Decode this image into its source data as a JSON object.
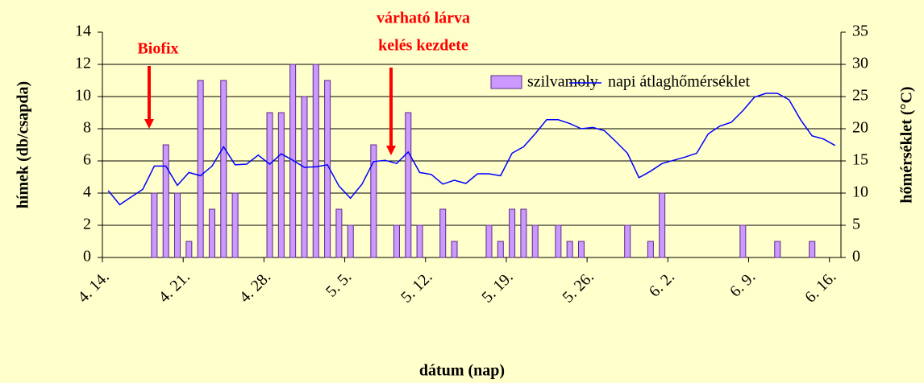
{
  "chart_data": {
    "type": "bar+line",
    "xlabel": "dátum (nap)",
    "ylabel": "hímek (db/csapda)",
    "y2label": "hőmérséklet (°C)",
    "categories": [
      "4. 14.",
      null,
      null,
      null,
      null,
      null,
      null,
      "4. 21.",
      null,
      null,
      null,
      null,
      null,
      null,
      "4. 28.",
      null,
      null,
      null,
      null,
      null,
      null,
      "5. 5.",
      null,
      null,
      null,
      null,
      null,
      null,
      "5. 12.",
      null,
      null,
      null,
      null,
      null,
      null,
      "5. 19.",
      null,
      null,
      null,
      null,
      null,
      null,
      "5. 26.",
      null,
      null,
      null,
      null,
      null,
      null,
      "6. 2.",
      null,
      null,
      null,
      null,
      null,
      null,
      "6. 9.",
      null,
      null,
      null,
      null,
      null,
      null,
      "6. 16."
    ],
    "series": [
      {
        "name": "szilvamoly",
        "color": "#cc99ff",
        "axis": "y",
        "values": [
          0,
          0,
          0,
          0,
          4,
          7,
          4,
          1,
          11,
          3,
          11,
          4,
          0,
          0,
          9,
          9,
          12,
          10,
          12,
          11,
          3,
          2,
          0,
          7,
          0,
          2,
          9,
          2,
          0,
          3,
          1,
          0,
          0,
          2,
          1,
          3,
          3,
          2,
          0,
          2,
          1,
          1,
          0,
          0,
          0,
          2,
          0,
          1,
          4,
          0,
          0,
          0,
          0,
          0,
          0,
          2,
          0,
          0,
          1,
          0,
          0,
          1,
          0,
          0
        ]
      },
      {
        "name": "napi átlaghőmérséklet",
        "color": "#0000ff",
        "axis": "y2",
        "values": [
          10.4,
          8.2,
          9.4,
          10.6,
          14.2,
          14.2,
          11.2,
          13.2,
          12.7,
          14.2,
          17.2,
          14.4,
          14.5,
          15.9,
          14.5,
          16.1,
          15.1,
          14,
          14.1,
          14.4,
          11.1,
          9.2,
          11.4,
          14.9,
          15.1,
          14.6,
          16.4,
          13.2,
          12.9,
          11.4,
          12,
          11.5,
          13,
          13,
          12.7,
          16.2,
          17.2,
          19.2,
          21.4,
          21.4,
          20.8,
          20,
          20.2,
          19.7,
          18,
          16.2,
          12.4,
          13.4,
          14.6,
          15.1,
          15.6,
          16.2,
          19.2,
          20.4,
          21,
          22.8,
          24.9,
          25.5,
          25.5,
          24.5,
          21.4,
          18.9,
          18.4,
          17.4
        ]
      }
    ],
    "ylim": [
      0,
      14
    ],
    "yticks": [
      0,
      2,
      4,
      6,
      8,
      10,
      12,
      14
    ],
    "y2lim": [
      0,
      35
    ],
    "y2ticks": [
      0,
      5,
      10,
      15,
      20,
      25,
      30,
      35
    ],
    "grid": true,
    "legend": "top-right",
    "annotations": [
      {
        "lines": [
          "Biofix"
        ],
        "color": "#ff0000"
      },
      {
        "lines": [
          "várható lárva",
          "kelés kezdete"
        ],
        "color": "#ff0000"
      }
    ]
  }
}
